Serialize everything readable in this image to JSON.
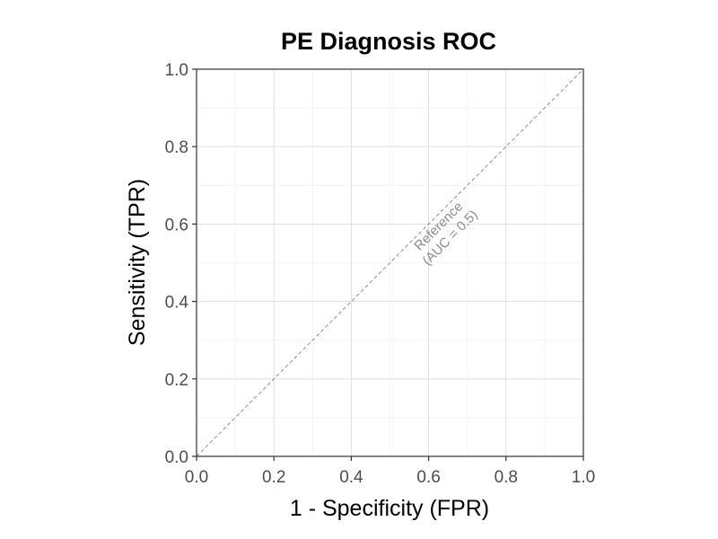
{
  "chart_data": {
    "type": "line",
    "title": "PE Diagnosis ROC",
    "xlabel": "1 - Specificity (FPR)",
    "ylabel": "Sensitivity (TPR)",
    "xlim": [
      0,
      1
    ],
    "ylim": [
      0,
      1
    ],
    "x_ticks": [
      "0.0",
      "0.2",
      "0.4",
      "0.6",
      "0.8",
      "1.0"
    ],
    "y_ticks": [
      "0.0",
      "0.2",
      "0.4",
      "0.6",
      "0.8",
      "1.0"
    ],
    "grid": true,
    "series": [
      {
        "x": [
          0,
          1
        ],
        "y": [
          0,
          1
        ],
        "style": "dashed",
        "color": "#8c8c8c"
      }
    ],
    "annotations": [
      {
        "lines": [
          "Reference",
          "(AUC = 0.5)"
        ],
        "x": 0.64,
        "y": 0.58
      }
    ]
  }
}
